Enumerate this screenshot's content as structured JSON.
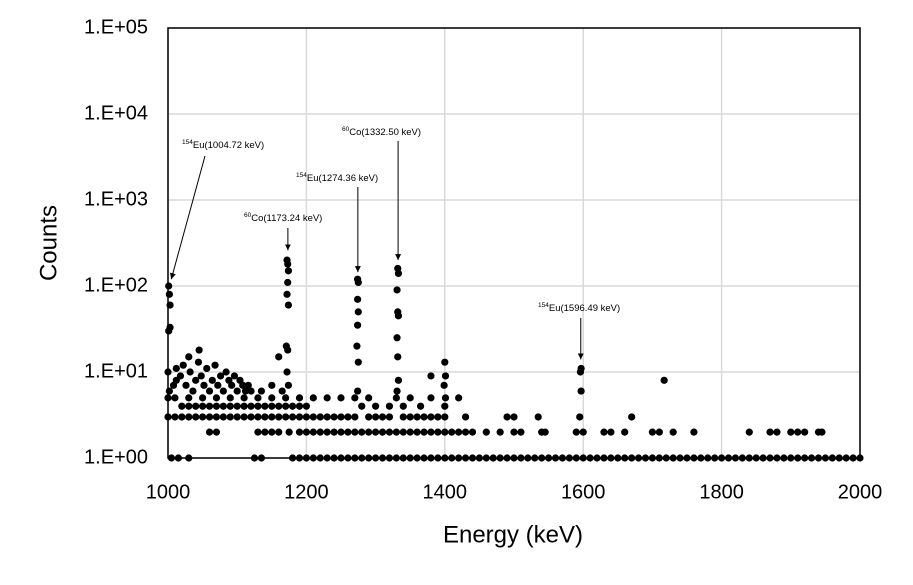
{
  "chart_data": {
    "type": "scatter",
    "xlabel": "Energy (keV)",
    "ylabel": "Counts",
    "color": "#000000",
    "log_y": true,
    "grid": true,
    "xlim": [
      1000,
      2000
    ],
    "xticks": [
      1000,
      1200,
      1400,
      1600,
      1800,
      2000
    ],
    "ylim": [
      1,
      100000
    ],
    "yticks": [
      {
        "value": 1,
        "label": "1.E+00"
      },
      {
        "value": 10,
        "label": "1.E+01"
      },
      {
        "value": 100,
        "label": "1.E+02"
      },
      {
        "value": 1000,
        "label": "1.E+03"
      },
      {
        "value": 10000,
        "label": "1.E+04"
      },
      {
        "value": 100000,
        "label": "1.E+05"
      }
    ],
    "annotations": [
      {
        "sup": "154",
        "text": "Eu(1004.72 keV)",
        "x": 1004.72,
        "y": 120
      },
      {
        "sup": "60",
        "text": "Co(1173.24 keV)",
        "x": 1173.24,
        "y": 260
      },
      {
        "sup": "154",
        "text": "Eu(1274.36 keV)",
        "x": 1274.36,
        "y": 145
      },
      {
        "sup": "60",
        "text": "Co(1332.50 keV)",
        "x": 1332.5,
        "y": 200
      },
      {
        "sup": "154",
        "text": "Eu(1596.49 keV)",
        "x": 1596.49,
        "y": 14
      }
    ],
    "x": [
      1005,
      1015,
      1030,
      1125,
      1135,
      1180,
      1190,
      1200,
      1210,
      1220,
      1230,
      1240,
      1250,
      1260,
      1270,
      1280,
      1290,
      1300,
      1310,
      1320,
      1330,
      1340,
      1350,
      1360,
      1370,
      1380,
      1390,
      1400,
      1410,
      1420,
      1430,
      1440,
      1450,
      1460,
      1470,
      1480,
      1490,
      1500,
      1510,
      1520,
      1530,
      1540,
      1550,
      1560,
      1570,
      1580,
      1590,
      1600,
      1610,
      1620,
      1630,
      1640,
      1650,
      1660,
      1670,
      1680,
      1690,
      1700,
      1710,
      1720,
      1730,
      1740,
      1750,
      1760,
      1770,
      1780,
      1790,
      1800,
      1810,
      1820,
      1830,
      1840,
      1850,
      1860,
      1870,
      1880,
      1890,
      1900,
      1910,
      1920,
      1930,
      1940,
      1950,
      1960,
      1970,
      1980,
      1990,
      2000,
      1060,
      1070,
      1130,
      1140,
      1150,
      1160,
      1175,
      1190,
      1200,
      1210,
      1220,
      1230,
      1240,
      1250,
      1260,
      1270,
      1280,
      1290,
      1300,
      1310,
      1320,
      1330,
      1340,
      1350,
      1360,
      1370,
      1380,
      1390,
      1400,
      1410,
      1420,
      1430,
      1440,
      1460,
      1480,
      1500,
      1510,
      1540,
      1545,
      1590,
      1600,
      1630,
      1640,
      1660,
      1700,
      1710,
      1730,
      1760,
      1840,
      1870,
      1880,
      1900,
      1910,
      1920,
      1940,
      1945,
      1000,
      1010,
      1020,
      1030,
      1040,
      1050,
      1060,
      1070,
      1080,
      1090,
      1100,
      1110,
      1120,
      1130,
      1140,
      1150,
      1160,
      1170,
      1180,
      1190,
      1200,
      1210,
      1220,
      1230,
      1240,
      1250,
      1260,
      1270,
      1290,
      1300,
      1310,
      1320,
      1340,
      1350,
      1360,
      1370,
      1380,
      1390,
      1400,
      1430,
      1490,
      1500,
      1535,
      1595,
      1670,
      1020,
      1030,
      1040,
      1050,
      1060,
      1070,
      1080,
      1090,
      1100,
      1110,
      1120,
      1130,
      1140,
      1150,
      1160,
      1170,
      1180,
      1190,
      1200,
      1280,
      1300,
      1320,
      1340,
      1365,
      1400,
      1000,
      1010,
      1030,
      1050,
      1070,
      1090,
      1110,
      1130,
      1150,
      1170,
      1190,
      1210,
      1230,
      1250,
      1270,
      1290,
      1330,
      1350,
      1380,
      1002,
      1008,
      1012,
      1018,
      1022,
      1026,
      1032,
      1036,
      1040,
      1044,
      1048,
      1052,
      1056,
      1060,
      1064,
      1068,
      1072,
      1076,
      1080,
      1084,
      1088,
      1092,
      1096,
      1100,
      1104,
      1108,
      1112,
      1116,
      1120,
      1030,
      1045,
      1012,
      1160,
      1135,
      1150,
      1165,
      1001,
      1002,
      1003,
      1001,
      1003,
      1000,
      1172,
      1173,
      1174,
      1173,
      1172,
      1174,
      1171,
      1173,
      1172,
      1174,
      1274,
      1275,
      1274,
      1275,
      1274,
      1273,
      1275,
      1274,
      1332,
      1333,
      1331,
      1332,
      1333,
      1331,
      1332,
      1333,
      1331,
      1597,
      1596,
      1597,
      1380,
      1400,
      1401,
      1399,
      1717,
      1420,
      1401
    ],
    "values": [
      1,
      1,
      1,
      1,
      1,
      1,
      1,
      1,
      1,
      1,
      1,
      1,
      1,
      1,
      1,
      1,
      1,
      1,
      1,
      1,
      1,
      1,
      1,
      1,
      1,
      1,
      1,
      1,
      1,
      1,
      1,
      1,
      1,
      1,
      1,
      1,
      1,
      1,
      1,
      1,
      1,
      1,
      1,
      1,
      1,
      1,
      1,
      1,
      1,
      1,
      1,
      1,
      1,
      1,
      1,
      1,
      1,
      1,
      1,
      1,
      1,
      1,
      1,
      1,
      1,
      1,
      1,
      1,
      1,
      1,
      1,
      1,
      1,
      1,
      1,
      1,
      1,
      1,
      1,
      1,
      1,
      1,
      1,
      1,
      1,
      1,
      1,
      1,
      2,
      2,
      2,
      2,
      2,
      2,
      2,
      2,
      2,
      2,
      2,
      2,
      2,
      2,
      2,
      2,
      2,
      2,
      2,
      2,
      2,
      2,
      2,
      2,
      2,
      2,
      2,
      2,
      2,
      2,
      2,
      2,
      2,
      2,
      2,
      2,
      2,
      2,
      2,
      2,
      2,
      2,
      2,
      2,
      2,
      2,
      2,
      2,
      2,
      2,
      2,
      2,
      2,
      2,
      2,
      2,
      3,
      3,
      3,
      3,
      3,
      3,
      3,
      3,
      3,
      3,
      3,
      3,
      3,
      3,
      3,
      3,
      3,
      3,
      3,
      3,
      3,
      3,
      3,
      3,
      3,
      3,
      3,
      3,
      3,
      3,
      3,
      3,
      3,
      3,
      3,
      3,
      3,
      3,
      3,
      3,
      3,
      3,
      3,
      3,
      3,
      4,
      4,
      4,
      4,
      4,
      4,
      4,
      4,
      4,
      4,
      4,
      4,
      4,
      4,
      4,
      4,
      4,
      4,
      4,
      4,
      4,
      4,
      4,
      4,
      4,
      5,
      5,
      5,
      5,
      5,
      5,
      5,
      5,
      5,
      5,
      5,
      5,
      5,
      5,
      5,
      5,
      5,
      5,
      5,
      6,
      7,
      8,
      9,
      12,
      7,
      10,
      6,
      8,
      13,
      9,
      7,
      11,
      6,
      8,
      12,
      7,
      9,
      6,
      10,
      8,
      7,
      9,
      6,
      8,
      7,
      6,
      7,
      6,
      15,
      18,
      11,
      15,
      6,
      7,
      6,
      100,
      80,
      60,
      30,
      33,
      10,
      200,
      180,
      150,
      110,
      80,
      60,
      20,
      18,
      10,
      7,
      120,
      110,
      70,
      50,
      35,
      20,
      13,
      6,
      160,
      140,
      90,
      50,
      45,
      25,
      15,
      8,
      6,
      11,
      10,
      6,
      9,
      13,
      9,
      7,
      8,
      5,
      5
    ]
  }
}
